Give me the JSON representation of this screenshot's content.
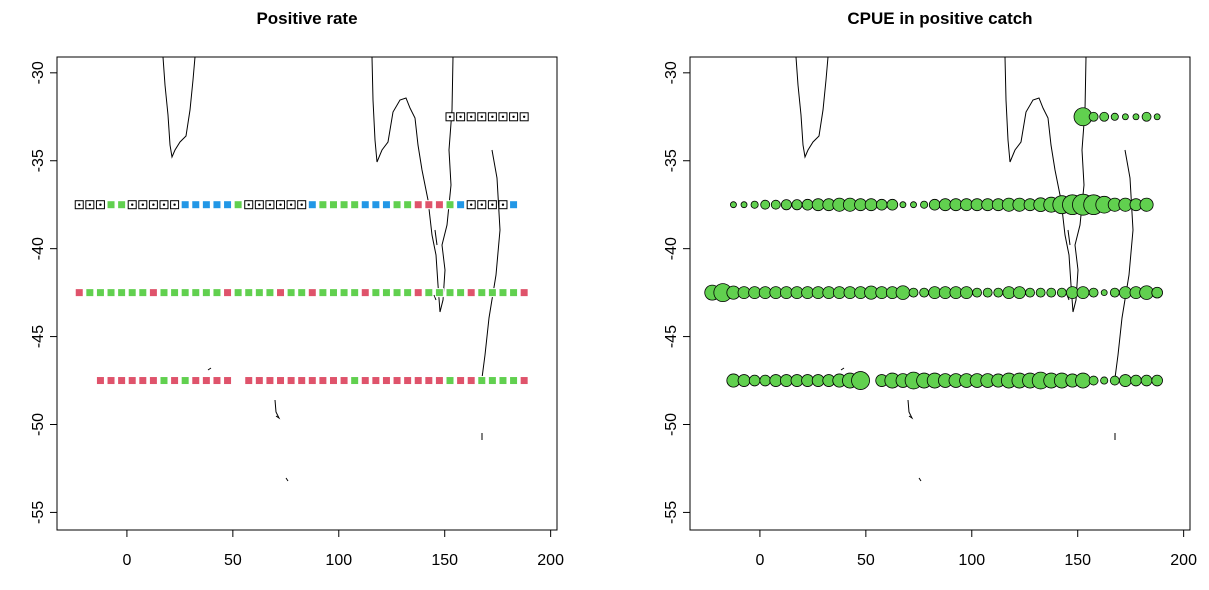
{
  "chart_data": [
    {
      "type": "scatter",
      "title": "Positive rate",
      "marker": "square",
      "xlim": [
        -33,
        203
      ],
      "ylim": [
        -56,
        -29.1
      ],
      "xticks": [
        0,
        50,
        100,
        150,
        200
      ],
      "yticks": [
        -30,
        -35,
        -40,
        -45,
        -50,
        -55
      ],
      "series": [
        {
          "color": "#ffffff",
          "x": [
            -22.5,
            -17.5,
            -12.5,
            2.5,
            7.5,
            12.5,
            17.5,
            22.5,
            57.5,
            62.5,
            67.5,
            72.5,
            77.5,
            82.5,
            162.5,
            167.5,
            172.5,
            177.5,
            152.5,
            157.5,
            162.5,
            167.5,
            172.5,
            177.5,
            182.5,
            187.5
          ],
          "values": [
            -37.5,
            -37.5,
            -37.5,
            -37.5,
            -37.5,
            -37.5,
            -37.5,
            -37.5,
            -37.5,
            -37.5,
            -37.5,
            -37.5,
            -37.5,
            -37.5,
            -37.5,
            -37.5,
            -37.5,
            -37.5,
            -32.5,
            -32.5,
            -32.5,
            -32.5,
            -32.5,
            -32.5,
            -32.5,
            -32.5
          ]
        },
        {
          "color": "#61d04f",
          "x": [
            -7.5,
            -2.5,
            52.5,
            92.5,
            97.5,
            102.5,
            107.5,
            127.5,
            132.5,
            152.5,
            -17.5,
            -12.5,
            -7.5,
            -2.5,
            2.5,
            7.5,
            17.5,
            22.5,
            27.5,
            32.5,
            37.5,
            42.5,
            52.5,
            57.5,
            62.5,
            67.5,
            77.5,
            82.5,
            92.5,
            97.5,
            102.5,
            107.5,
            117.5,
            122.5,
            127.5,
            132.5,
            142.5,
            147.5,
            152.5,
            157.5,
            167.5,
            172.5,
            177.5,
            182.5,
            17.5,
            27.5,
            107.5,
            152.5,
            167.5,
            172.5,
            177.5,
            182.5
          ],
          "values": [
            -37.5,
            -37.5,
            -37.5,
            -37.5,
            -37.5,
            -37.5,
            -37.5,
            -37.5,
            -37.5,
            -37.5,
            -42.5,
            -42.5,
            -42.5,
            -42.5,
            -42.5,
            -42.5,
            -42.5,
            -42.5,
            -42.5,
            -42.5,
            -42.5,
            -42.5,
            -42.5,
            -42.5,
            -42.5,
            -42.5,
            -42.5,
            -42.5,
            -42.5,
            -42.5,
            -42.5,
            -42.5,
            -42.5,
            -42.5,
            -42.5,
            -42.5,
            -42.5,
            -42.5,
            -42.5,
            -42.5,
            -42.5,
            -42.5,
            -42.5,
            -42.5,
            -47.5,
            -47.5,
            -47.5,
            -47.5,
            -47.5,
            -47.5,
            -47.5,
            -47.5
          ]
        },
        {
          "color": "#2297e6",
          "x": [
            27.5,
            32.5,
            37.5,
            42.5,
            47.5,
            87.5,
            112.5,
            117.5,
            122.5,
            157.5,
            182.5
          ],
          "values": [
            -37.5,
            -37.5,
            -37.5,
            -37.5,
            -37.5,
            -37.5,
            -37.5,
            -37.5,
            -37.5,
            -37.5,
            -37.5
          ]
        },
        {
          "color": "#df536b",
          "x": [
            137.5,
            142.5,
            147.5,
            -22.5,
            12.5,
            47.5,
            72.5,
            87.5,
            112.5,
            137.5,
            162.5,
            187.5,
            -12.5,
            -7.5,
            -2.5,
            2.5,
            7.5,
            12.5,
            22.5,
            32.5,
            37.5,
            42.5,
            47.5,
            57.5,
            62.5,
            67.5,
            72.5,
            77.5,
            82.5,
            87.5,
            92.5,
            97.5,
            102.5,
            112.5,
            117.5,
            122.5,
            127.5,
            132.5,
            137.5,
            142.5,
            147.5,
            157.5,
            162.5,
            187.5
          ],
          "values": [
            -37.5,
            -37.5,
            -37.5,
            -42.5,
            -42.5,
            -42.5,
            -42.5,
            -42.5,
            -42.5,
            -42.5,
            -42.5,
            -42.5,
            -47.5,
            -47.5,
            -47.5,
            -47.5,
            -47.5,
            -47.5,
            -47.5,
            -47.5,
            -47.5,
            -47.5,
            -47.5,
            -47.5,
            -47.5,
            -47.5,
            -47.5,
            -47.5,
            -47.5,
            -47.5,
            -47.5,
            -47.5,
            -47.5,
            -47.5,
            -47.5,
            -47.5,
            -47.5,
            -47.5,
            -47.5,
            -47.5,
            -47.5,
            -47.5,
            -47.5,
            -47.5
          ]
        }
      ]
    },
    {
      "type": "scatter",
      "title": "CPUE in positive catch",
      "marker": "circle",
      "xlim": [
        -33,
        203
      ],
      "ylim": [
        -56,
        -29.1
      ],
      "xticks": [
        0,
        50,
        100,
        150,
        200
      ],
      "yticks": [
        -30,
        -35,
        -40,
        -45,
        -50,
        -55
      ],
      "series": [
        {
          "color": "#61d04f",
          "x": [
            152.5,
            157.5,
            162.5,
            167.5,
            172.5,
            177.5,
            182.5,
            187.5
          ],
          "values": [
            -32.5,
            -32.5,
            -32.5,
            -32.5,
            -32.5,
            -32.5,
            -32.5,
            -32.5
          ],
          "sizes": [
            3,
            1.5,
            1.5,
            1.2,
            1,
            1,
            1.5,
            1
          ]
        },
        {
          "color": "#61d04f",
          "x": [
            -12.5,
            -7.5,
            -2.5,
            2.5,
            7.5,
            12.5,
            17.5,
            22.5,
            27.5,
            32.5,
            37.5,
            42.5,
            47.5,
            52.5,
            57.5,
            62.5,
            67.5,
            72.5,
            77.5,
            82.5,
            87.5,
            92.5,
            97.5,
            102.5,
            107.5,
            112.5,
            117.5,
            122.5,
            127.5,
            132.5,
            137.5,
            142.5,
            147.5,
            152.5,
            157.5,
            162.5,
            167.5,
            172.5,
            177.5,
            182.5
          ],
          "values": [
            -37.5,
            -37.5,
            -37.5,
            -37.5,
            -37.5,
            -37.5,
            -37.5,
            -37.5,
            -37.5,
            -37.5,
            -37.5,
            -37.5,
            -37.5,
            -37.5,
            -37.5,
            -37.5,
            -37.5,
            -37.5,
            -37.5,
            -37.5,
            -37.5,
            -37.5,
            -37.5,
            -37.5,
            -37.5,
            -37.5,
            -37.5,
            -37.5,
            -37.5,
            -37.5,
            -37.5,
            -37.5,
            -37.5,
            -37.5,
            -37.5,
            -37.5,
            -37.5,
            -37.5,
            -37.5,
            -37.5
          ],
          "sizes": [
            1,
            1,
            1.2,
            1.5,
            1.5,
            1.7,
            1.7,
            1.8,
            2,
            2,
            2.2,
            2.2,
            2,
            2,
            1.8,
            1.8,
            1,
            1,
            1.2,
            1.8,
            2,
            2,
            2,
            2,
            2,
            2,
            2.2,
            2.2,
            2,
            2.3,
            2.5,
            3,
            3.3,
            3.5,
            3.3,
            2.8,
            2.2,
            2.2,
            2,
            2.2
          ]
        },
        {
          "color": "#61d04f",
          "x": [
            -22.5,
            -17.5,
            -12.5,
            -7.5,
            -2.5,
            2.5,
            7.5,
            12.5,
            17.5,
            22.5,
            27.5,
            32.5,
            37.5,
            42.5,
            47.5,
            52.5,
            57.5,
            62.5,
            67.5,
            72.5,
            77.5,
            82.5,
            87.5,
            92.5,
            97.5,
            102.5,
            107.5,
            112.5,
            117.5,
            122.5,
            127.5,
            132.5,
            137.5,
            142.5,
            147.5,
            152.5,
            157.5,
            162.5,
            167.5,
            172.5,
            177.5,
            182.5,
            187.5
          ],
          "values": [
            -42.5,
            -42.5,
            -42.5,
            -42.5,
            -42.5,
            -42.5,
            -42.5,
            -42.5,
            -42.5,
            -42.5,
            -42.5,
            -42.5,
            -42.5,
            -42.5,
            -42.5,
            -42.5,
            -42.5,
            -42.5,
            -42.5,
            -42.5,
            -42.5,
            -42.5,
            -42.5,
            -42.5,
            -42.5,
            -42.5,
            -42.5,
            -42.5,
            -42.5,
            -42.5,
            -42.5,
            -42.5,
            -42.5,
            -42.5,
            -42.5,
            -42.5,
            -42.5,
            -42.5,
            -42.5,
            -42.5,
            -42.5,
            -42.5,
            -42.5
          ],
          "sizes": [
            2.5,
            3,
            2.2,
            2,
            2,
            2,
            2,
            2,
            2,
            2,
            2,
            2,
            2,
            2,
            2,
            2.2,
            2,
            2,
            2.3,
            1.5,
            1.5,
            2,
            2,
            2,
            2,
            1.5,
            1.5,
            1.5,
            2,
            2,
            1.5,
            1.5,
            1.5,
            1.5,
            2,
            2,
            1.5,
            1,
            1.5,
            2,
            2,
            2.3,
            1.8
          ]
        },
        {
          "color": "#61d04f",
          "x": [
            -12.5,
            -7.5,
            -2.5,
            2.5,
            7.5,
            12.5,
            17.5,
            22.5,
            27.5,
            32.5,
            37.5,
            42.5,
            47.5,
            57.5,
            62.5,
            67.5,
            72.5,
            77.5,
            82.5,
            87.5,
            92.5,
            97.5,
            102.5,
            107.5,
            112.5,
            117.5,
            122.5,
            127.5,
            132.5,
            137.5,
            142.5,
            147.5,
            152.5,
            157.5,
            162.5,
            167.5,
            172.5,
            177.5,
            182.5,
            187.5
          ],
          "values": [
            -47.5,
            -47.5,
            -47.5,
            -47.5,
            -47.5,
            -47.5,
            -47.5,
            -47.5,
            -47.5,
            -47.5,
            -47.5,
            -47.5,
            -47.5,
            -47.5,
            -47.5,
            -47.5,
            -47.5,
            -47.5,
            -47.5,
            -47.5,
            -47.5,
            -47.5,
            -47.5,
            -47.5,
            -47.5,
            -47.5,
            -47.5,
            -47.5,
            -47.5,
            -47.5,
            -47.5,
            -47.5,
            -47.5,
            -47.5,
            -47.5,
            -47.5,
            -47.5,
            -47.5,
            -47.5,
            -47.5
          ],
          "sizes": [
            2.2,
            2,
            1.8,
            1.8,
            2,
            2,
            2,
            2,
            2,
            2,
            2.2,
            2.5,
            3,
            2,
            2.5,
            2.3,
            2.8,
            2.5,
            2.5,
            2.3,
            2.3,
            2.3,
            2.3,
            2.3,
            2.2,
            2.5,
            2.5,
            2.5,
            2.8,
            2.5,
            2.5,
            2.2,
            2.5,
            1.5,
            1.2,
            1.5,
            2,
            1.8,
            1.8,
            1.8
          ]
        }
      ]
    }
  ]
}
